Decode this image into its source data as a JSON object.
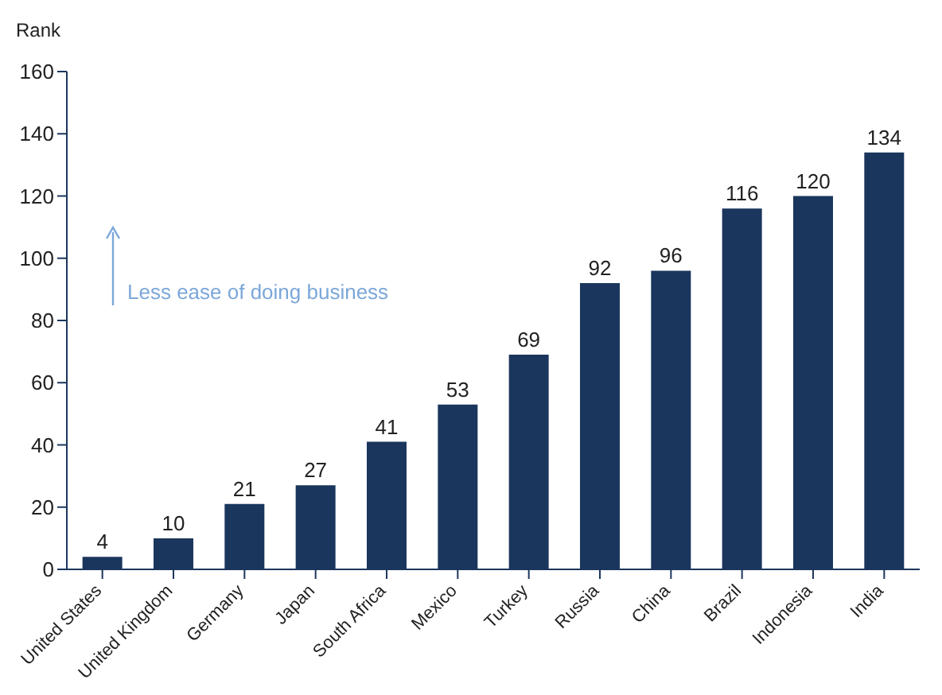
{
  "chart_data": {
    "type": "bar",
    "ylabel": "Rank",
    "categories": [
      "United States",
      "United Kingdom",
      "Germany",
      "Japan",
      "South Africa",
      "Mexico",
      "Turkey",
      "Russia",
      "China",
      "Brazil",
      "Indonesia",
      "India"
    ],
    "values": [
      4,
      10,
      21,
      27,
      41,
      53,
      69,
      92,
      96,
      116,
      120,
      134
    ],
    "color": "#1b365d",
    "ylim": [
      0,
      160
    ],
    "yticks": [
      0,
      20,
      40,
      60,
      80,
      100,
      120,
      140,
      160
    ],
    "grid": false,
    "data_labels": true,
    "annotations": [
      "Less ease of doing business"
    ]
  }
}
